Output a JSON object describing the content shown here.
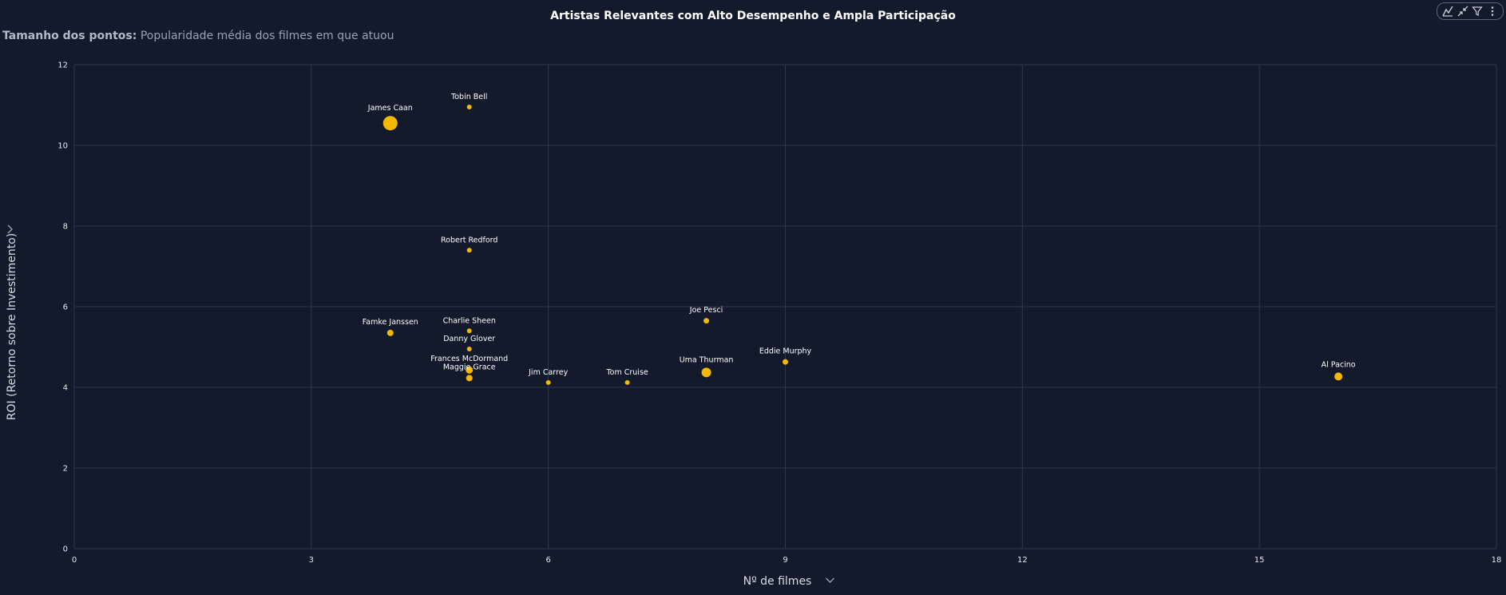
{
  "subtitle": {
    "prefix": "Tamanho dos pontos:",
    "text": "Popularidade média dos filmes em que atuou"
  },
  "toolbar": {
    "items": [
      "chart-settings-icon",
      "collapse-icon",
      "filter-icon",
      "more-options-icon"
    ]
  },
  "colors": {
    "background": "#131a2c",
    "grid": "#2f3750",
    "point": "#f5b800"
  },
  "chart_data": {
    "type": "scatter",
    "title": "Artistas Relevantes com Alto Desempenho e Ampla Participação",
    "xlabel": "Nº de filmes",
    "ylabel": "ROI (Retorno sobre Investimento)",
    "xlim": [
      0,
      18
    ],
    "ylim": [
      0,
      12
    ],
    "xticks": [
      0,
      3,
      6,
      9,
      12,
      15,
      18
    ],
    "yticks": [
      0,
      2,
      4,
      6,
      8,
      10,
      12
    ],
    "grid": true,
    "size_legend": "Popularidade média dos filmes em que atuou",
    "points": [
      {
        "label": "James Caan",
        "x": 4,
        "y": 10.55,
        "size": 9
      },
      {
        "label": "Tobin Bell",
        "x": 5,
        "y": 10.95,
        "size": 3
      },
      {
        "label": "Robert Redford",
        "x": 5,
        "y": 7.4,
        "size": 3
      },
      {
        "label": "Famke Janssen",
        "x": 4,
        "y": 5.35,
        "size": 4
      },
      {
        "label": "Charlie Sheen",
        "x": 5,
        "y": 5.4,
        "size": 3
      },
      {
        "label": "Danny Glover",
        "x": 5,
        "y": 4.95,
        "size": 3
      },
      {
        "label": "Frances McDormand",
        "x": 5,
        "y": 4.43,
        "size": 4.5
      },
      {
        "label": "Maggie Grace",
        "x": 5,
        "y": 4.23,
        "size": 4
      },
      {
        "label": "Jim Carrey",
        "x": 6,
        "y": 4.12,
        "size": 3
      },
      {
        "label": "Tom Cruise",
        "x": 7,
        "y": 4.12,
        "size": 3
      },
      {
        "label": "Joe Pesci",
        "x": 8,
        "y": 5.65,
        "size": 3.5
      },
      {
        "label": "Uma Thurman",
        "x": 8,
        "y": 4.37,
        "size": 6
      },
      {
        "label": "Eddie Murphy",
        "x": 9,
        "y": 4.63,
        "size": 3.5
      },
      {
        "label": "Al Pacino",
        "x": 16,
        "y": 4.27,
        "size": 5
      }
    ]
  }
}
